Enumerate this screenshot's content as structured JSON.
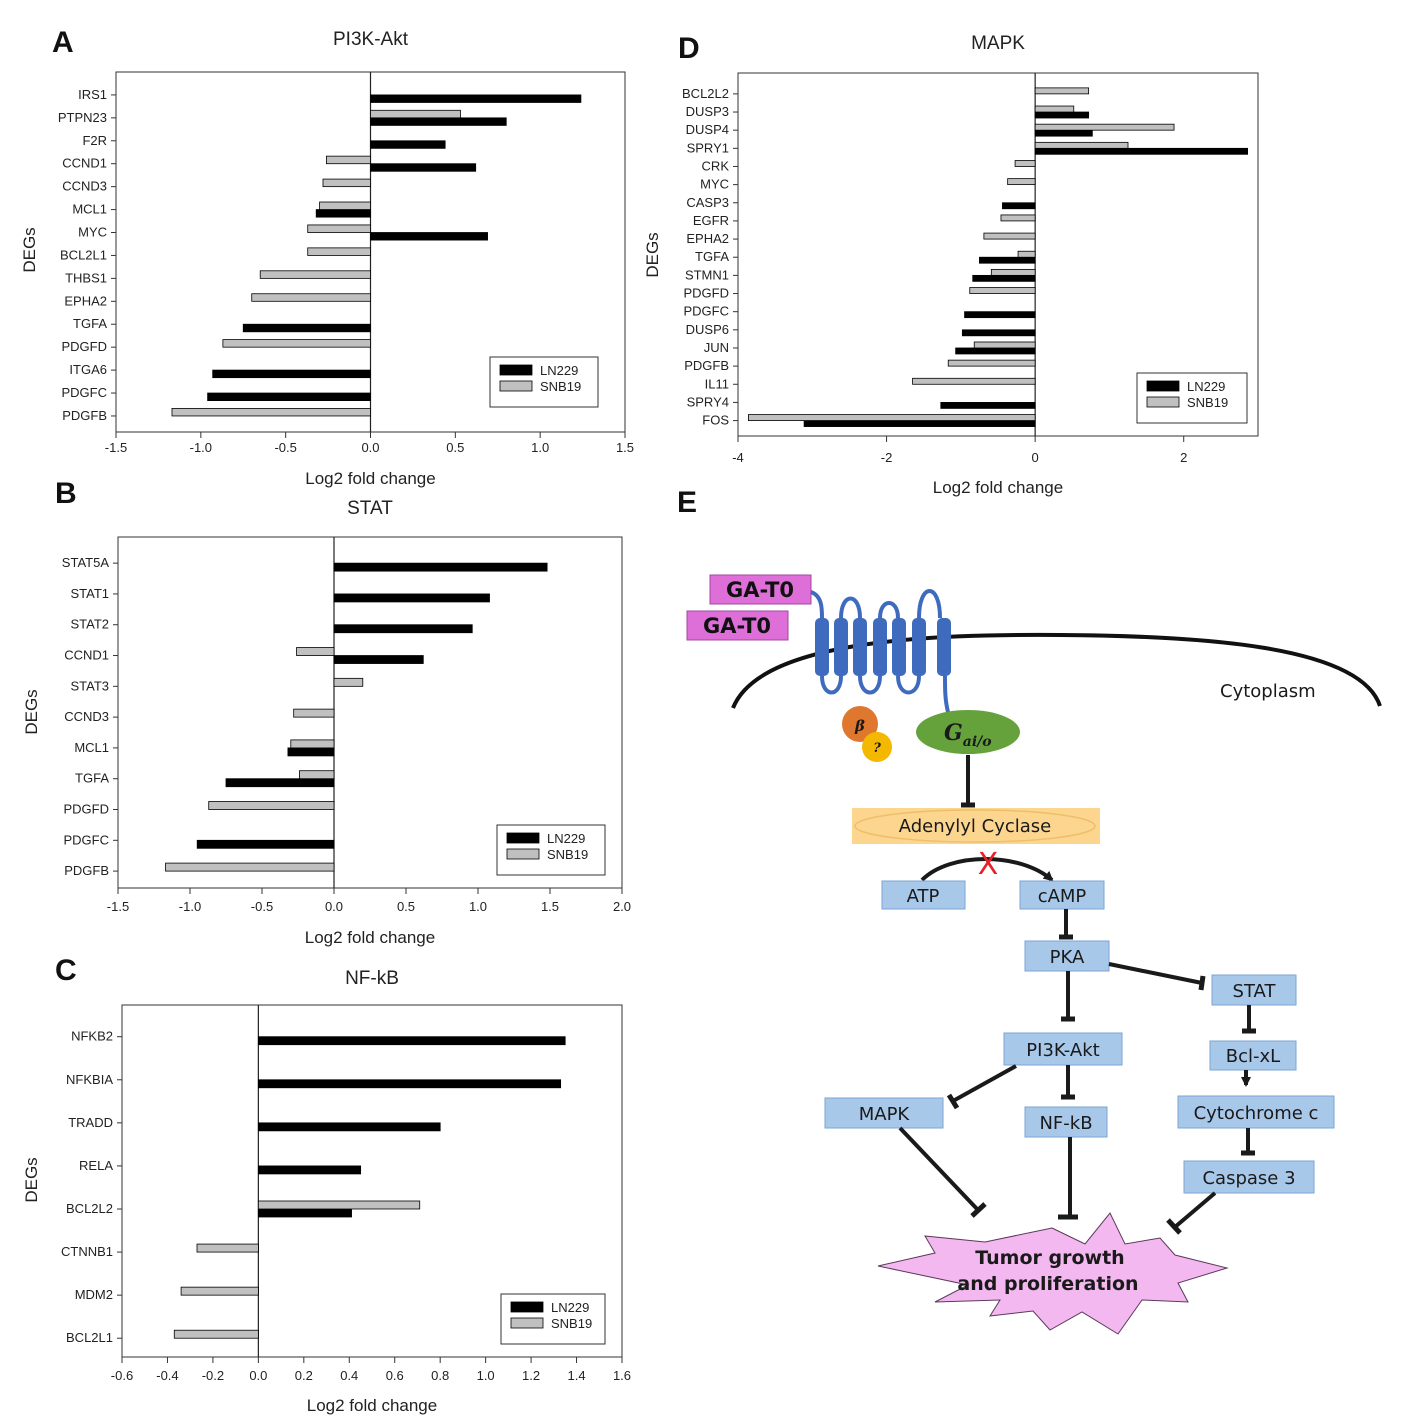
{
  "colors": {
    "ln229": "#000000",
    "snb19": "#c0c0c0",
    "node_fill": "#a8c8ea",
    "node_stroke": "#7ba3d3",
    "ac_fill": "#fcd58f",
    "gat_fill": "#de6fd8",
    "tumor_fill": "#f2b8ef",
    "receptor": "#3f6bbf",
    "g_alpha": "#66a23c",
    "beta": "#e0772e",
    "gamma": "#f5b800",
    "cross": "#e8202a"
  },
  "chart_data": [
    {
      "id": "A",
      "letter": "A",
      "type": "bar",
      "orientation": "horizontal",
      "title": "PI3K-Akt",
      "xlabel": "Log2 fold change",
      "ylabel": "DEGs",
      "xlim": [
        -1.5,
        1.5
      ],
      "xticks": [
        -1.5,
        -1.0,
        -0.5,
        0.0,
        0.5,
        1.0,
        1.5
      ],
      "xtick_labels": [
        "-1.5",
        "-1.0",
        "-0.5",
        "0.0",
        "0.5",
        "1.0",
        "1.5"
      ],
      "legend_position": "bottom-right",
      "categories": [
        "IRS1",
        "PTPN23",
        "F2R",
        "CCND1",
        "CCND3",
        "MCL1",
        "MYC",
        "BCL2L1",
        "THBS1",
        "EPHA2",
        "TGFA",
        "PDGFD",
        "ITGA6",
        "PDGFC",
        "PDGFB"
      ],
      "series": [
        {
          "name": "LN229",
          "values": [
            1.24,
            0.8,
            0.44,
            0.62,
            null,
            -0.32,
            0.69,
            null,
            null,
            null,
            -0.75,
            null,
            -0.93,
            -0.96,
            null
          ]
        },
        {
          "name": "SNB19",
          "values": [
            null,
            0.53,
            null,
            -0.26,
            -0.28,
            -0.3,
            -0.37,
            -0.37,
            -0.65,
            -0.7,
            null,
            -0.87,
            null,
            null,
            -1.17
          ]
        }
      ]
    },
    {
      "id": "B",
      "letter": "B",
      "type": "bar",
      "orientation": "horizontal",
      "title": "STAT",
      "xlabel": "Log2 fold change",
      "ylabel": "DEGs",
      "xlim": [
        -1.5,
        2.0
      ],
      "xticks": [
        -1.5,
        -1.0,
        -0.5,
        0.0,
        0.5,
        1.0,
        1.5,
        2.0
      ],
      "xtick_labels": [
        "-1.5",
        "-1.0",
        "-0.5",
        "0.0",
        "0.5",
        "1.0",
        "1.5",
        "2.0"
      ],
      "legend_position": "bottom-right",
      "categories": [
        "STAT5A",
        "STAT1",
        "STAT2",
        "CCND1",
        "STAT3",
        "CCND3",
        "MCL1",
        "TGFA",
        "PDGFD",
        "PDGFC",
        "PDGFB"
      ],
      "series": [
        {
          "name": "LN229",
          "values": [
            1.48,
            1.08,
            0.96,
            0.62,
            null,
            null,
            -0.32,
            -0.75,
            null,
            -0.95,
            null
          ]
        },
        {
          "name": "SNB19",
          "values": [
            null,
            null,
            null,
            -0.26,
            0.2,
            -0.28,
            -0.3,
            -0.24,
            -0.87,
            null,
            -1.17
          ]
        }
      ]
    },
    {
      "id": "C",
      "letter": "C",
      "type": "bar",
      "orientation": "horizontal",
      "title": "NF-kB",
      "xlabel": "Log2 fold change",
      "ylabel": "DEGs",
      "xlim": [
        -0.6,
        1.6
      ],
      "xticks": [
        -0.6,
        -0.4,
        -0.2,
        0.0,
        0.2,
        0.4,
        0.6,
        0.8,
        1.0,
        1.2,
        1.4,
        1.6
      ],
      "xtick_labels": [
        "-0.6",
        "-0.4",
        "-0.2",
        "0.0",
        "0.2",
        "0.4",
        "0.6",
        "0.8",
        "1.0",
        "1.2",
        "1.4",
        "1.6"
      ],
      "legend_position": "bottom-right",
      "categories": [
        "NFKB2",
        "NFKBIA",
        "TRADD",
        "RELA",
        "BCL2L2",
        "CTNNB1",
        "MDM2",
        "BCL2L1"
      ],
      "series": [
        {
          "name": "LN229",
          "values": [
            1.35,
            1.33,
            0.8,
            0.45,
            0.41,
            null,
            null,
            null
          ]
        },
        {
          "name": "SNB19",
          "values": [
            null,
            null,
            null,
            null,
            0.71,
            -0.27,
            -0.34,
            -0.37
          ]
        }
      ]
    },
    {
      "id": "D",
      "letter": "D",
      "type": "bar",
      "orientation": "horizontal",
      "title": "MAPK",
      "xlabel": "Log2 fold change",
      "ylabel": "DEGs",
      "xlim": [
        -4,
        3
      ],
      "xticks": [
        -4,
        -2,
        0,
        2
      ],
      "xtick_labels": [
        "-4",
        "-2",
        "0",
        "2"
      ],
      "legend_position": "bottom-right",
      "categories": [
        "BCL2L2",
        "DUSP3",
        "DUSP4",
        "SPRY1",
        "CRK",
        "MYC",
        "CASP3",
        "EGFR",
        "EPHA2",
        "TGFA",
        "STMN1",
        "PDGFD",
        "PDGFC",
        "DUSP6",
        "JUN",
        "PDGFB",
        "IL11",
        "SPRY4",
        "FOS"
      ],
      "series": [
        {
          "name": "LN229",
          "values": [
            null,
            0.72,
            0.77,
            2.86,
            null,
            null,
            -0.44,
            null,
            null,
            -0.75,
            -0.84,
            null,
            -0.95,
            -0.98,
            -1.07,
            null,
            null,
            -1.27,
            -3.11
          ]
        },
        {
          "name": "SNB19",
          "values": [
            0.72,
            0.52,
            1.87,
            1.25,
            -0.27,
            -0.37,
            null,
            -0.46,
            -0.69,
            -0.23,
            -0.59,
            -0.88,
            null,
            null,
            -0.82,
            -1.17,
            -1.65,
            null,
            -3.86
          ]
        }
      ]
    }
  ],
  "diagram": {
    "letter": "E",
    "ligand_1": "GA-T0",
    "ligand_2": "GA-T0",
    "cytoplasm": "Cytoplasm",
    "beta_label": "β",
    "gamma_label": "?",
    "g_alpha_main": "G",
    "g_alpha_sub": "ai/o",
    "adenylyl_cyclase": "Adenylyl Cyclase",
    "atp": "ATP",
    "camp": "cAMP",
    "pka": "PKA",
    "stat": "STAT",
    "pi3k_akt": "PI3K-Akt",
    "bcl_xl": "Bcl-xL",
    "mapk": "MAPK",
    "nfkb": "NF-kB",
    "cytochrome_c": "Cytochrome c",
    "caspase3": "Caspase 3",
    "tumor_line1": "Tumor growth",
    "tumor_line2": "and proliferation",
    "block_symbol": "X"
  }
}
